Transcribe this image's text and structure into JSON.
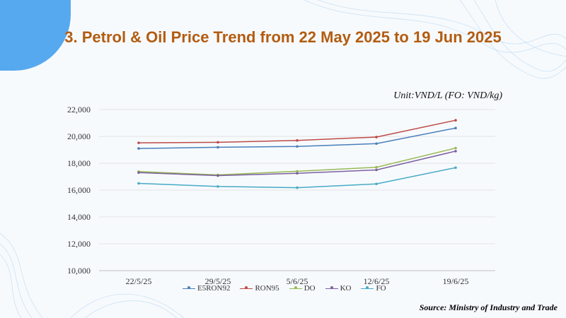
{
  "page_title": "3. Petrol & Oil Price Trend from 22 May 2025 to 19 Jun 2025",
  "unit_label": "Unit:VND/L (FO: VND/kg)",
  "source": "Source: Ministry of Industry and Trade",
  "chart_data": {
    "type": "line",
    "title": "",
    "xlabel": "",
    "ylabel": "",
    "categories": [
      "22/5/25",
      "29/5/25",
      "5/6/25",
      "12/6/25",
      "19/6/25"
    ],
    "ylim": [
      10000,
      22000
    ],
    "yticks": [
      10000,
      12000,
      14000,
      16000,
      18000,
      20000,
      22000
    ],
    "ytick_labels": [
      "10,000",
      "12,000",
      "14,000",
      "16,000",
      "18,000",
      "20,000",
      "22,000"
    ],
    "grid": true,
    "legend_position": "bottom",
    "series": [
      {
        "name": "E5RON92",
        "color": "#4a7ebb",
        "values": [
          19100,
          19190,
          19250,
          19460,
          20620
        ]
      },
      {
        "name": "RON95",
        "color": "#be4b48",
        "values": [
          19520,
          19560,
          19700,
          19950,
          21200
        ]
      },
      {
        "name": "DO",
        "color": "#98b954",
        "values": [
          17380,
          17130,
          17400,
          17700,
          19130
        ]
      },
      {
        "name": "KO",
        "color": "#7d60a0",
        "values": [
          17300,
          17080,
          17250,
          17500,
          18900
        ]
      },
      {
        "name": "FO",
        "color": "#46aac5",
        "values": [
          16500,
          16270,
          16180,
          16460,
          17670
        ]
      }
    ]
  }
}
